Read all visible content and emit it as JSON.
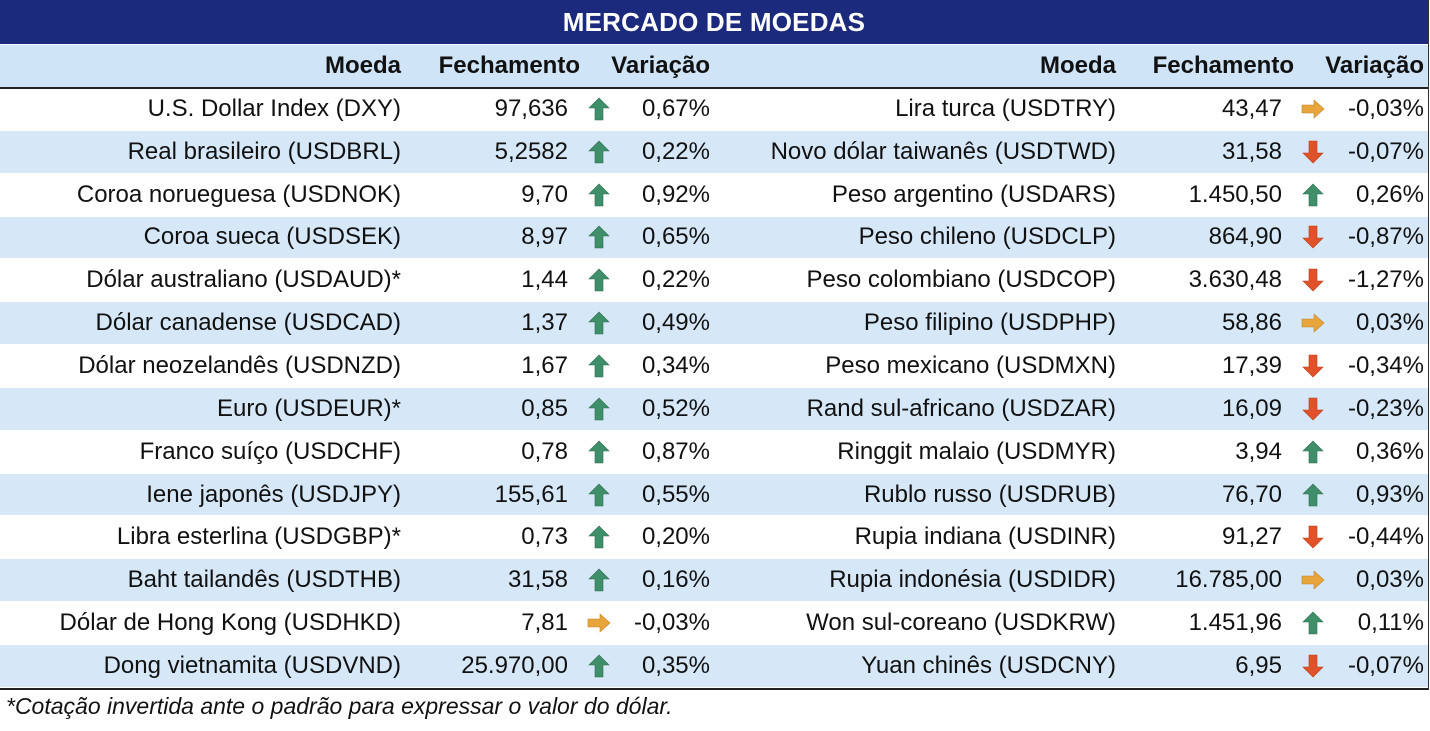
{
  "title": "MERCADO DE MOEDAS",
  "headers": {
    "currency": "Moeda",
    "close": "Fechamento",
    "change": "Variação"
  },
  "colors": {
    "title_bg": "#1b2a7c",
    "header_bg": "#cfe4f7",
    "row_alt_bg": "#d6e8f8",
    "up": "#3f8f6a",
    "down": "#e2522a",
    "flat": "#e8a53c"
  },
  "left": [
    {
      "name": "U.S. Dollar Index (DXY)",
      "close": "97,636",
      "dir": "up",
      "icon": "arrow-up-icon",
      "change": "0,67%"
    },
    {
      "name": "Real brasileiro (USDBRL)",
      "close": "5,2582",
      "dir": "up",
      "icon": "arrow-up-icon",
      "change": "0,22%"
    },
    {
      "name": "Coroa norueguesa (USDNOK)",
      "close": "9,70",
      "dir": "up",
      "icon": "arrow-up-icon",
      "change": "0,92%"
    },
    {
      "name": "Coroa sueca (USDSEK)",
      "close": "8,97",
      "dir": "up",
      "icon": "arrow-up-icon",
      "change": "0,65%"
    },
    {
      "name": "Dólar australiano (USDAUD)*",
      "close": "1,44",
      "dir": "up",
      "icon": "arrow-up-icon",
      "change": "0,22%"
    },
    {
      "name": "Dólar canadense (USDCAD)",
      "close": "1,37",
      "dir": "up",
      "icon": "arrow-up-icon",
      "change": "0,49%"
    },
    {
      "name": "Dólar neozelandês (USDNZD)",
      "close": "1,67",
      "dir": "up",
      "icon": "arrow-up-icon",
      "change": "0,34%"
    },
    {
      "name": "Euro (USDEUR)*",
      "close": "0,85",
      "dir": "up",
      "icon": "arrow-up-icon",
      "change": "0,52%"
    },
    {
      "name": "Franco suíço (USDCHF)",
      "close": "0,78",
      "dir": "up",
      "icon": "arrow-up-icon",
      "change": "0,87%"
    },
    {
      "name": "Iene japonês (USDJPY)",
      "close": "155,61",
      "dir": "up",
      "icon": "arrow-up-icon",
      "change": "0,55%"
    },
    {
      "name": "Libra esterlina (USDGBP)*",
      "close": "0,73",
      "dir": "up",
      "icon": "arrow-up-icon",
      "change": "0,20%"
    },
    {
      "name": "Baht tailandês (USDTHB)",
      "close": "31,58",
      "dir": "up",
      "icon": "arrow-up-icon",
      "change": "0,16%"
    },
    {
      "name": "Dólar de Hong Kong (USDHKD)",
      "close": "7,81",
      "dir": "flat",
      "icon": "arrow-right-icon",
      "change": "-0,03%"
    },
    {
      "name": "Dong vietnamita (USDVND)",
      "close": "25.970,00",
      "dir": "up",
      "icon": "arrow-up-icon",
      "change": "0,35%"
    }
  ],
  "right": [
    {
      "name": "Lira turca (USDTRY)",
      "close": "43,47",
      "dir": "flat",
      "icon": "arrow-right-icon",
      "change": "-0,03%"
    },
    {
      "name": "Novo dólar taiwanês (USDTWD)",
      "close": "31,58",
      "dir": "down",
      "icon": "arrow-down-icon",
      "change": "-0,07%"
    },
    {
      "name": "Peso argentino (USDARS)",
      "close": "1.450,50",
      "dir": "up",
      "icon": "arrow-up-icon",
      "change": "0,26%"
    },
    {
      "name": "Peso chileno (USDCLP)",
      "close": "864,90",
      "dir": "down",
      "icon": "arrow-down-icon",
      "change": "-0,87%"
    },
    {
      "name": "Peso colombiano (USDCOP)",
      "close": "3.630,48",
      "dir": "down",
      "icon": "arrow-down-icon",
      "change": "-1,27%"
    },
    {
      "name": "Peso filipino (USDPHP)",
      "close": "58,86",
      "dir": "flat",
      "icon": "arrow-right-icon",
      "change": "0,03%"
    },
    {
      "name": "Peso mexicano (USDMXN)",
      "close": "17,39",
      "dir": "down",
      "icon": "arrow-down-icon",
      "change": "-0,34%"
    },
    {
      "name": "Rand sul-africano (USDZAR)",
      "close": "16,09",
      "dir": "down",
      "icon": "arrow-down-icon",
      "change": "-0,23%"
    },
    {
      "name": "Ringgit malaio (USDMYR)",
      "close": "3,94",
      "dir": "up",
      "icon": "arrow-up-icon",
      "change": "0,36%"
    },
    {
      "name": "Rublo russo (USDRUB)",
      "close": "76,70",
      "dir": "up",
      "icon": "arrow-up-icon",
      "change": "0,93%"
    },
    {
      "name": "Rupia indiana (USDINR)",
      "close": "91,27",
      "dir": "down",
      "icon": "arrow-down-icon",
      "change": "-0,44%"
    },
    {
      "name": "Rupia indonésia (USDIDR)",
      "close": "16.785,00",
      "dir": "flat",
      "icon": "arrow-right-icon",
      "change": "0,03%"
    },
    {
      "name": "Won sul-coreano (USDKRW)",
      "close": "1.451,96",
      "dir": "up",
      "icon": "arrow-up-icon",
      "change": "0,11%"
    },
    {
      "name": "Yuan chinês (USDCNY)",
      "close": "6,95",
      "dir": "down",
      "icon": "arrow-down-icon",
      "change": "-0,07%"
    }
  ],
  "footnote": "*Cotação invertida ante o padrão para expressar o valor do dólar."
}
